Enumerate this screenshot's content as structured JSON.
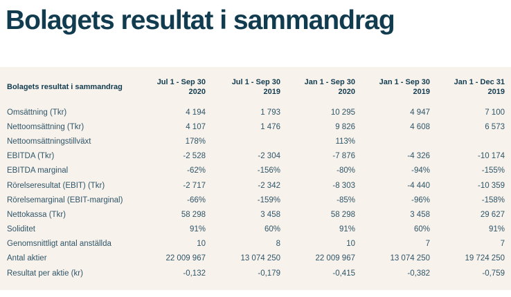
{
  "page": {
    "title": "Bolagets resultat i sammandrag"
  },
  "colors": {
    "heading_text": "#113c50",
    "table_header_text": "#113c50",
    "table_body_text": "#2e5568",
    "panel_background": "#f8f2ec",
    "page_background": "#ffffff"
  },
  "table": {
    "label_header": "Bolagets resultat i sammandrag",
    "columns": [
      {
        "period": "Jul 1 - Sep 30",
        "year": "2020"
      },
      {
        "period": "Jul 1 - Sep 30",
        "year": "2019"
      },
      {
        "period": "Jan 1 - Sep 30",
        "year": "2020"
      },
      {
        "period": "Jan 1 - Sep 30",
        "year": "2019"
      },
      {
        "period": "Jan 1 - Dec 31",
        "year": "2019"
      }
    ],
    "rows": [
      {
        "label": "Omsättning (Tkr)",
        "values": [
          "4 194",
          "1 793",
          "10 295",
          "4 947",
          "7 100"
        ]
      },
      {
        "label": "Nettoomsättning (Tkr)",
        "values": [
          "4 107",
          "1 476",
          "9 826",
          "4 608",
          "6 573"
        ]
      },
      {
        "label": "Nettoomsättningstillväxt",
        "values": [
          "178%",
          "",
          "113%",
          "",
          ""
        ]
      },
      {
        "label": "EBITDA (Tkr)",
        "values": [
          "-2 528",
          "-2 304",
          "-7 876",
          "-4 326",
          "-10 174"
        ]
      },
      {
        "label": "EBITDA marginal",
        "values": [
          "-62%",
          "-156%",
          "-80%",
          "-94%",
          "-155%"
        ]
      },
      {
        "label": "Rörelseresultat (EBIT) (Tkr)",
        "values": [
          "-2 717",
          "-2 342",
          "-8 303",
          "-4 440",
          "-10 359"
        ]
      },
      {
        "label": "Rörelsemarginal (EBIT-marginal)",
        "values": [
          "-66%",
          "-159%",
          "-85%",
          "-96%",
          "-158%"
        ]
      },
      {
        "label": "Nettokassa (Tkr)",
        "values": [
          "58 298",
          "3 458",
          "58 298",
          "3 458",
          "29 627"
        ]
      },
      {
        "label": "Soliditet",
        "values": [
          "91%",
          "60%",
          "91%",
          "60%",
          "91%"
        ]
      },
      {
        "label": "Genomsnittligt antal anställda",
        "values": [
          "10",
          "8",
          "10",
          "7",
          "7"
        ]
      },
      {
        "label": "Antal aktier",
        "values": [
          "22 009 967",
          "13 074 250",
          "22 009 967",
          "13 074 250",
          "19 724 250"
        ]
      },
      {
        "label": "Resultat per aktie (kr)",
        "values": [
          "-0,132",
          "-0,179",
          "-0,415",
          "-0,382",
          "-0,759"
        ]
      }
    ]
  }
}
